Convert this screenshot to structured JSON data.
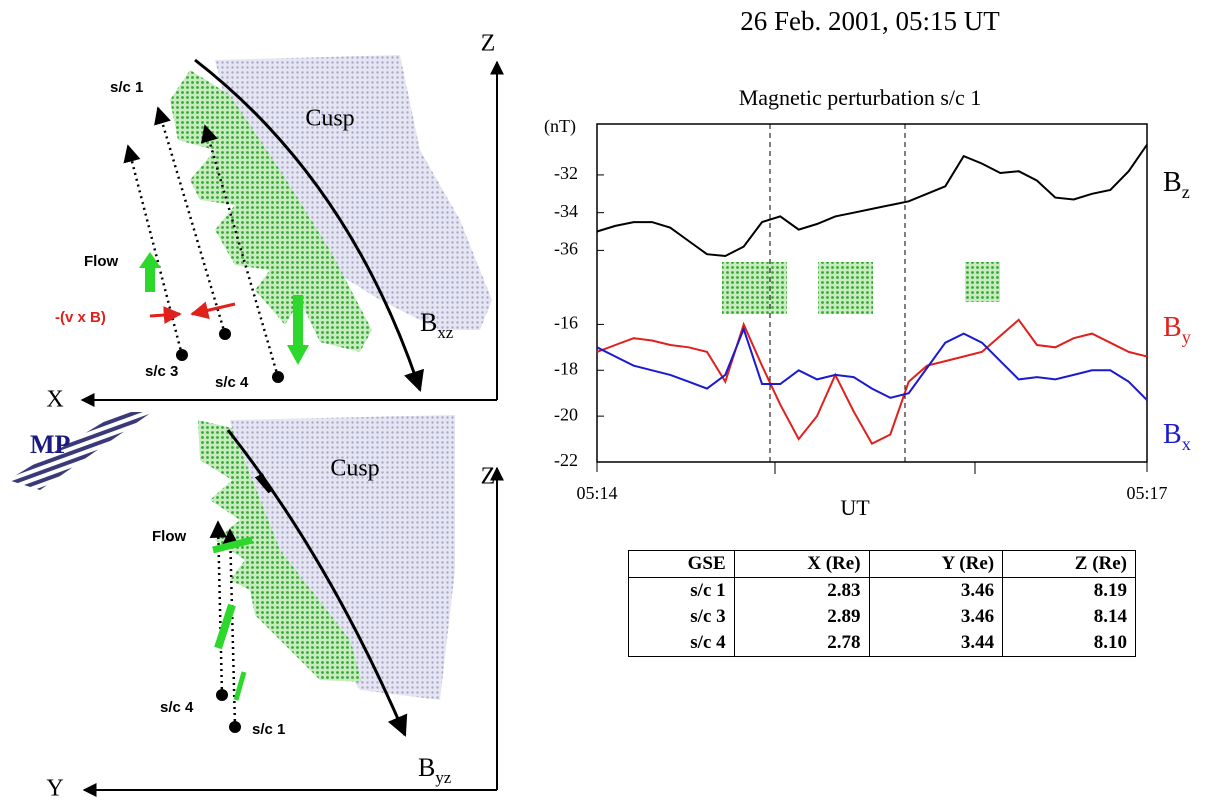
{
  "title": "26 Feb. 2001, 05:15 UT",
  "diagram_xz": {
    "z_axis": "Z",
    "x_axis": "X",
    "cusp": "Cusp",
    "flow": "Flow",
    "vxb": "-(v x B)",
    "sc1": "s/c 1",
    "sc3": "s/c 3",
    "sc4": "s/c 4",
    "field": "Bxz"
  },
  "diagram_yz": {
    "mp": "MP",
    "z_axis": "Z",
    "y_axis": "Y",
    "cusp": "Cusp",
    "flow": "Flow",
    "sc4": "s/c 4",
    "sc1": "s/c 1",
    "field": "Byz"
  },
  "chart_data": [
    {
      "type": "line",
      "title": "Magnetic perturbation s/c 1",
      "y_label": "(nT)",
      "x": [
        0,
        6,
        12,
        18,
        24,
        30,
        36,
        42,
        48,
        54,
        60,
        66,
        72,
        78,
        84,
        90,
        96,
        102,
        108,
        114,
        120,
        126,
        132,
        138,
        144,
        150,
        156,
        162,
        168,
        174,
        180
      ],
      "xlim": [
        0,
        180
      ],
      "ylim": [
        -38.1,
        -29.3
      ],
      "yticks": [
        -32,
        -34,
        -36
      ],
      "series": [
        {
          "name": "Bz",
          "color": "#000000",
          "values": [
            -35.0,
            -34.7,
            -34.5,
            -34.5,
            -34.8,
            -35.5,
            -36.2,
            -36.3,
            -35.8,
            -34.5,
            -34.2,
            -34.9,
            -34.6,
            -34.2,
            -34.0,
            -33.8,
            -33.6,
            -33.4,
            -33.0,
            -32.6,
            -31.0,
            -31.4,
            -31.9,
            -31.8,
            -32.3,
            -33.2,
            -33.3,
            -33.0,
            -32.8,
            -31.8,
            -30.4
          ]
        }
      ]
    },
    {
      "type": "line",
      "x_label": "UT",
      "x": [
        0,
        6,
        12,
        18,
        24,
        30,
        36,
        42,
        48,
        54,
        60,
        66,
        72,
        78,
        84,
        90,
        96,
        102,
        108,
        114,
        120,
        126,
        132,
        138,
        144,
        150,
        156,
        162,
        168,
        174,
        180
      ],
      "xlim": [
        0,
        180
      ],
      "xticks": [
        {
          "value": 0,
          "label": "05:14"
        },
        {
          "value": 180,
          "label": "05:17"
        }
      ],
      "ylim": [
        -22,
        -14.5
      ],
      "yticks": [
        -16,
        -18,
        -20,
        -22
      ],
      "series": [
        {
          "name": "By",
          "color": "#e0201c",
          "values": [
            -17.2,
            -16.9,
            -16.6,
            -16.7,
            -16.9,
            -17.0,
            -17.2,
            -18.5,
            -16.0,
            -17.8,
            -19.5,
            -21.0,
            -20.0,
            -18.2,
            -19.8,
            -21.2,
            -20.8,
            -18.5,
            -17.8,
            -17.6,
            -17.4,
            -17.2,
            -16.5,
            -15.8,
            -16.9,
            -17.0,
            -16.6,
            -16.4,
            -16.8,
            -17.2,
            -17.4
          ]
        },
        {
          "name": "Bx",
          "color": "#1a1ad0",
          "values": [
            -17.0,
            -17.4,
            -17.8,
            -18.0,
            -18.2,
            -18.5,
            -18.8,
            -18.2,
            -16.2,
            -18.6,
            -18.6,
            -18.0,
            -18.4,
            -18.2,
            -18.3,
            -18.8,
            -19.2,
            -19.0,
            -17.9,
            -16.8,
            -16.4,
            -16.8,
            -17.6,
            -18.4,
            -18.3,
            -18.4,
            -18.2,
            -18.0,
            -18.0,
            -18.5,
            -19.3
          ]
        }
      ]
    }
  ],
  "table": {
    "header": [
      "GSE",
      "X (Re)",
      "Y (Re)",
      "Z (Re)"
    ],
    "rows": [
      [
        "s/c 1",
        "2.83",
        "3.46",
        "8.19"
      ],
      [
        "s/c 3",
        "2.89",
        "3.46",
        "8.14"
      ],
      [
        "s/c 4",
        "2.78",
        "3.44",
        "8.10"
      ]
    ]
  }
}
